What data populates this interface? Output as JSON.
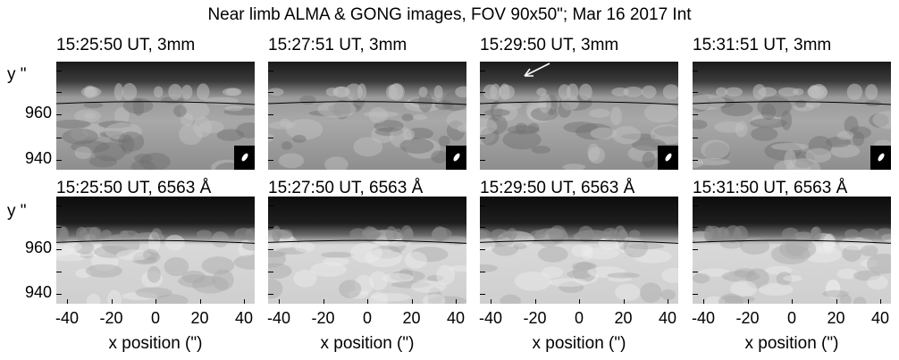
{
  "figure": {
    "title": "Near limb ALMA & GONG images, FOV 90x50\"; Mar 16 2017 Int",
    "y_axis_label": "y \"",
    "x_axis_label": "x position (\")",
    "y_ticks": [
      "960",
      "940"
    ],
    "x_ticks": [
      "-40",
      "-20",
      "0",
      "20",
      "40"
    ],
    "rows": [
      {
        "band": "alma-3mm",
        "panels": [
          {
            "label": "15:25:50 UT, 3mm"
          },
          {
            "label": "15:27:51 UT, 3mm"
          },
          {
            "label": "15:29:50 UT, 3mm",
            "arrow": true
          },
          {
            "label": "15:31:51 UT, 3mm"
          }
        ]
      },
      {
        "band": "gong-halpha",
        "panels": [
          {
            "label": "15:25:50 UT, 6563 Å"
          },
          {
            "label": "15:27:50 UT, 6563 Å"
          },
          {
            "label": "15:29:50 UT, 6563 Å"
          },
          {
            "label": "15:31:50 UT, 6563 Å"
          }
        ]
      }
    ]
  }
}
